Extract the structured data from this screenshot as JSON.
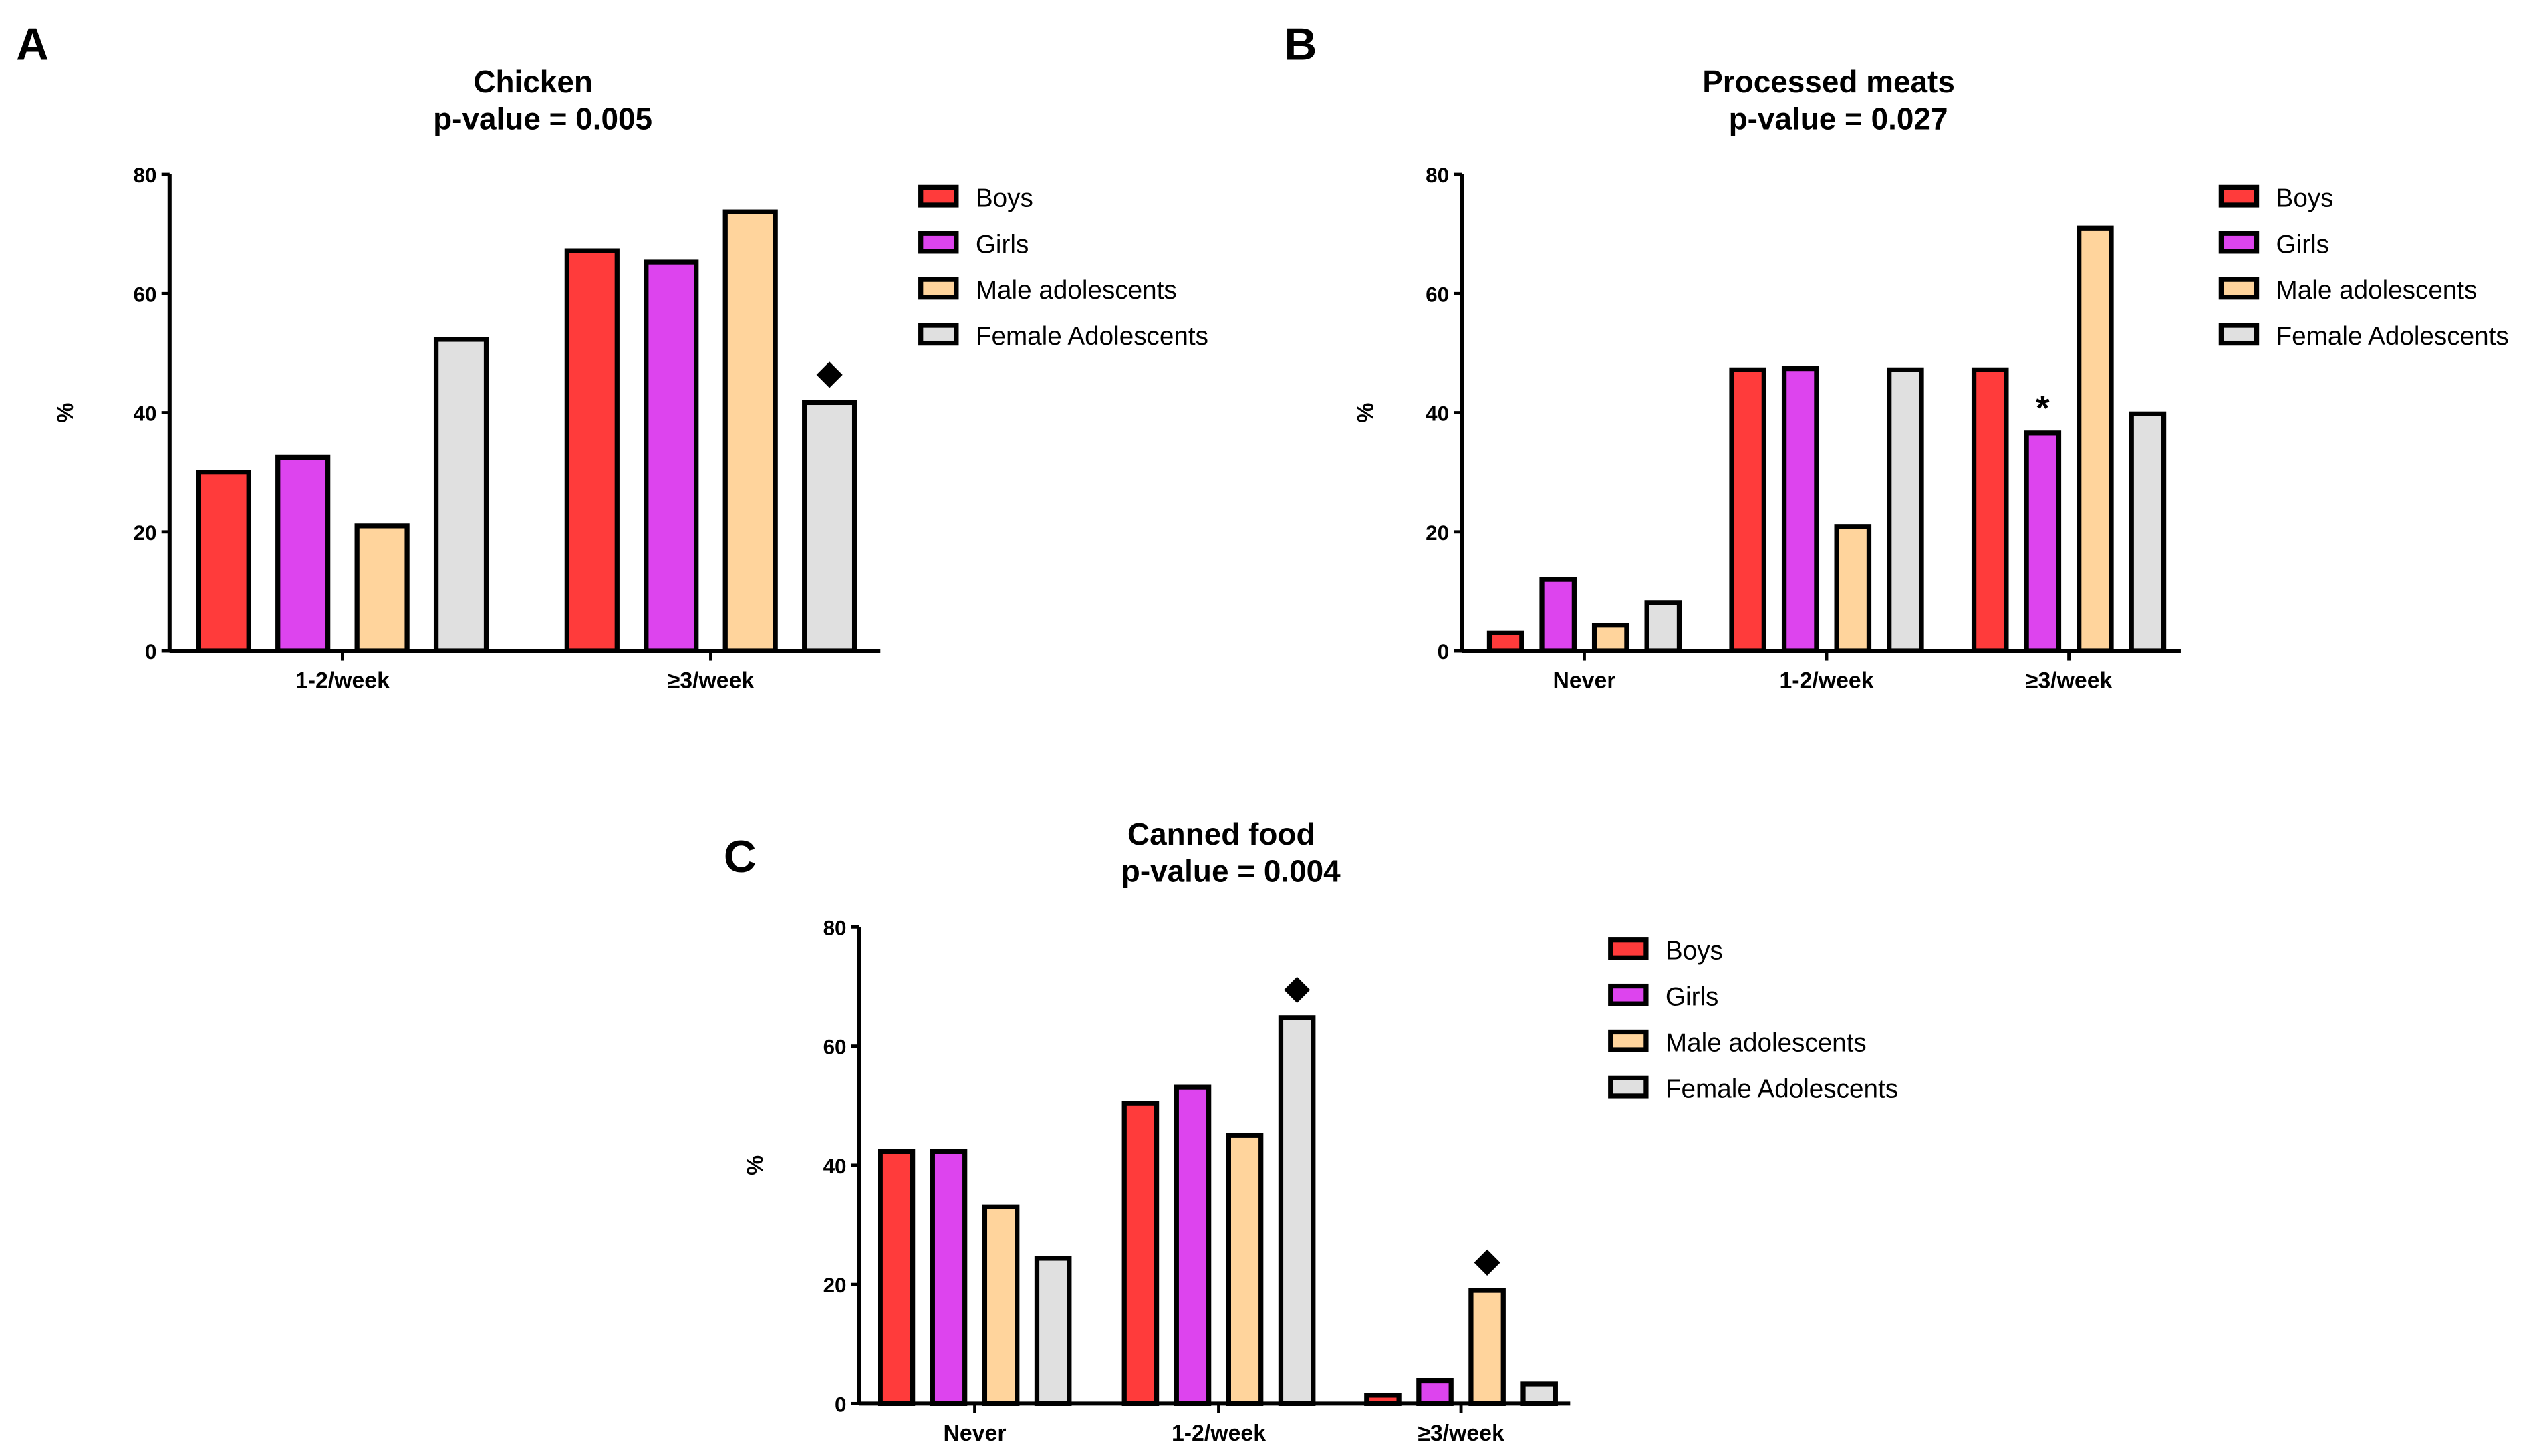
{
  "colors": {
    "Boys": "#ff3b3b",
    "Girls": "#dd44ee",
    "Male adolescents": "#ffd49c",
    "Female Adolescents": "#e0e0e0",
    "outline": "#000000"
  },
  "chart_data": [
    {
      "panel": "A",
      "type": "bar",
      "title": "Chicken",
      "subtitle": "p-value = 0.005",
      "ylabel": "%",
      "xlabel": "",
      "ylim": [
        0,
        80
      ],
      "yticks": [
        0,
        20,
        40,
        60,
        80
      ],
      "categories": [
        "1-2/week",
        "≥3/week"
      ],
      "legend_position": "right",
      "series": [
        {
          "name": "Boys",
          "values": [
            30,
            67.2
          ]
        },
        {
          "name": "Girls",
          "values": [
            32.5,
            65.3
          ]
        },
        {
          "name": "Male adolescents",
          "values": [
            21,
            73.7
          ]
        },
        {
          "name": "Female Adolescents",
          "values": [
            52.3,
            41.7
          ]
        }
      ],
      "annotations": [
        {
          "symbol": "◆",
          "series": 3,
          "category": 1
        }
      ]
    },
    {
      "panel": "B",
      "type": "bar",
      "title": "Processed meats",
      "subtitle": "p-value = 0.027",
      "ylabel": "%",
      "xlabel": "",
      "ylim": [
        0,
        80
      ],
      "yticks": [
        0,
        20,
        40,
        60,
        80
      ],
      "categories": [
        "Never",
        "1-2/week",
        "≥3/week"
      ],
      "legend_position": "right",
      "series": [
        {
          "name": "Boys",
          "values": [
            3,
            47.2,
            47.2
          ]
        },
        {
          "name": "Girls",
          "values": [
            12,
            47.4,
            36.6
          ]
        },
        {
          "name": "Male adolescents",
          "values": [
            4.3,
            20.9,
            71
          ]
        },
        {
          "name": "Female Adolescents",
          "values": [
            8.1,
            47.2,
            39.8
          ]
        }
      ],
      "annotations": [
        {
          "symbol": "*",
          "series": 1,
          "category": 2
        }
      ]
    },
    {
      "panel": "C",
      "type": "bar",
      "title": "Canned food",
      "subtitle": "p-value =  0.004",
      "ylabel": "%",
      "xlabel": "",
      "ylim": [
        0,
        80
      ],
      "yticks": [
        0,
        20,
        40,
        60,
        80
      ],
      "categories": [
        "Never",
        "1-2/week",
        "≥3/week"
      ],
      "legend_position": "right",
      "series": [
        {
          "name": "Boys",
          "values": [
            42.3,
            50.4,
            1.4
          ]
        },
        {
          "name": "Girls",
          "values": [
            42.3,
            53.1,
            3.8
          ]
        },
        {
          "name": "Male adolescents",
          "values": [
            33,
            45,
            19
          ]
        },
        {
          "name": "Female Adolescents",
          "values": [
            24.4,
            64.8,
            3.3
          ]
        }
      ],
      "annotations": [
        {
          "symbol": "◆",
          "series": 3,
          "category": 1
        },
        {
          "symbol": "◆",
          "series": 2,
          "category": 2
        }
      ]
    }
  ]
}
